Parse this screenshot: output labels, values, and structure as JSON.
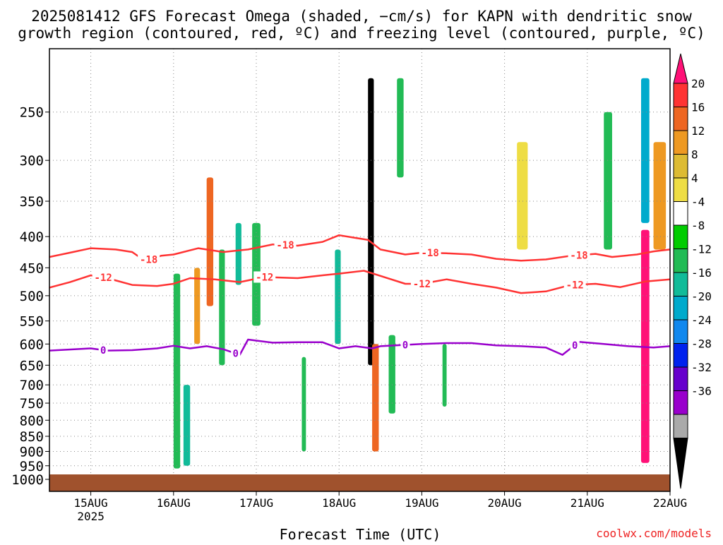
{
  "chart_data": {
    "type": "heatmap",
    "title_line1": "2025081412 GFS Forecast Omega (shaded, −cm/s) for KAPN with dendritic snow",
    "title_line2": "growth region (contoured, red, ºC) and freezing level (contoured, purple, ºC)",
    "xlabel": "Forecast Time (UTC)",
    "credit": "coolwx.com/models",
    "x_ticks": [
      {
        "t": 15,
        "label": "15AUG",
        "sub": "2025"
      },
      {
        "t": 16,
        "label": "16AUG",
        "sub": ""
      },
      {
        "t": 17,
        "label": "17AUG",
        "sub": ""
      },
      {
        "t": 18,
        "label": "18AUG",
        "sub": ""
      },
      {
        "t": 19,
        "label": "19AUG",
        "sub": ""
      },
      {
        "t": 20,
        "label": "20AUG",
        "sub": ""
      },
      {
        "t": 21,
        "label": "21AUG",
        "sub": ""
      },
      {
        "t": 22,
        "label": "22AUG",
        "sub": ""
      }
    ],
    "x_range": [
      14.5,
      22
    ],
    "y_ticks": [
      250,
      300,
      350,
      400,
      450,
      500,
      550,
      600,
      650,
      700,
      750,
      800,
      850,
      900,
      950,
      1000
    ],
    "y_range_hpa": [
      200,
      1000
    ],
    "y_scale": "log-pressure",
    "grid": true,
    "colorbar": {
      "labels": [
        "20",
        "16",
        "12",
        "8",
        "4",
        "-4",
        "-8",
        "-12",
        "-16",
        "-20",
        "-24",
        "-28",
        "-32",
        "-36"
      ],
      "colors": [
        "#ff1177",
        "#ff3333",
        "#ee6622",
        "#ee9922",
        "#ddbb33",
        "#eedd44",
        "#ffffff",
        "#00cc00",
        "#22bb55",
        "#11bb99",
        "#00aacc",
        "#1188ee",
        "#0022ee",
        "#6600cc",
        "#9900cc",
        "#aaaaaa",
        "#000000"
      ]
    },
    "contours": [
      {
        "label": "-18",
        "color": "#ff3333",
        "points": [
          [
            14.5,
            432
          ],
          [
            14.75,
            425
          ],
          [
            15.0,
            418
          ],
          [
            15.3,
            420
          ],
          [
            15.5,
            424
          ],
          [
            15.65,
            438
          ],
          [
            15.85,
            430
          ],
          [
            16.0,
            428
          ],
          [
            16.3,
            418
          ],
          [
            16.6,
            424
          ],
          [
            16.9,
            420
          ],
          [
            17.2,
            412
          ],
          [
            17.5,
            414
          ],
          [
            17.8,
            408
          ],
          [
            18.0,
            398
          ],
          [
            18.2,
            402
          ],
          [
            18.35,
            405
          ],
          [
            18.5,
            420
          ],
          [
            18.8,
            428
          ],
          [
            19.0,
            425
          ],
          [
            19.3,
            426
          ],
          [
            19.6,
            428
          ],
          [
            19.9,
            435
          ],
          [
            20.2,
            438
          ],
          [
            20.5,
            436
          ],
          [
            20.8,
            430
          ],
          [
            21.1,
            427
          ],
          [
            21.3,
            432
          ],
          [
            21.6,
            428
          ],
          [
            21.8,
            423
          ],
          [
            22.0,
            420
          ]
        ],
        "label_at": [
          [
            15.7,
            -18
          ],
          [
            17.35,
            -18
          ],
          [
            19.1,
            -18
          ],
          [
            20.9,
            -18
          ]
        ]
      },
      {
        "label": "-12",
        "color": "#ff3333",
        "points": [
          [
            14.5,
            485
          ],
          [
            14.75,
            475
          ],
          [
            15.0,
            463
          ],
          [
            15.2,
            468
          ],
          [
            15.5,
            480
          ],
          [
            15.8,
            482
          ],
          [
            16.0,
            478
          ],
          [
            16.2,
            468
          ],
          [
            16.5,
            470
          ],
          [
            16.8,
            475
          ],
          [
            17.1,
            466
          ],
          [
            17.5,
            468
          ],
          [
            17.8,
            463
          ],
          [
            18.0,
            460
          ],
          [
            18.3,
            455
          ],
          [
            18.5,
            464
          ],
          [
            18.8,
            478
          ],
          [
            19.0,
            478
          ],
          [
            19.3,
            470
          ],
          [
            19.6,
            478
          ],
          [
            19.9,
            485
          ],
          [
            20.2,
            495
          ],
          [
            20.5,
            492
          ],
          [
            20.8,
            480
          ],
          [
            21.1,
            478
          ],
          [
            21.4,
            484
          ],
          [
            21.7,
            474
          ],
          [
            22.0,
            470
          ]
        ],
        "label_at": [
          [
            15.15,
            -12
          ],
          [
            17.1,
            -12
          ],
          [
            19.0,
            -12
          ],
          [
            20.85,
            -12
          ]
        ]
      },
      {
        "label": "0",
        "color": "#9900cc",
        "points": [
          [
            14.5,
            615
          ],
          [
            14.8,
            612
          ],
          [
            15.0,
            610
          ],
          [
            15.2,
            615
          ],
          [
            15.5,
            614
          ],
          [
            15.8,
            610
          ],
          [
            16.0,
            604
          ],
          [
            16.2,
            610
          ],
          [
            16.4,
            605
          ],
          [
            16.6,
            612
          ],
          [
            16.8,
            625
          ],
          [
            16.9,
            590
          ],
          [
            17.2,
            597
          ],
          [
            17.5,
            596
          ],
          [
            17.8,
            596
          ],
          [
            18.0,
            610
          ],
          [
            18.2,
            605
          ],
          [
            18.4,
            610
          ],
          [
            18.5,
            605
          ],
          [
            18.8,
            602
          ],
          [
            19.0,
            600
          ],
          [
            19.3,
            598
          ],
          [
            19.6,
            598
          ],
          [
            19.9,
            603
          ],
          [
            20.2,
            605
          ],
          [
            20.5,
            608
          ],
          [
            20.7,
            625
          ],
          [
            20.9,
            595
          ],
          [
            21.2,
            600
          ],
          [
            21.5,
            605
          ],
          [
            21.8,
            608
          ],
          [
            22.0,
            605
          ]
        ],
        "label_at": [
          [
            15.15,
            0
          ],
          [
            16.75,
            0
          ],
          [
            18.8,
            0
          ],
          [
            20.85,
            0
          ]
        ]
      }
    ],
    "omega_cells": [
      {
        "t0": 16.0,
        "t1": 16.08,
        "p0": 460,
        "p1": 960,
        "value": -10
      },
      {
        "t0": 16.12,
        "t1": 16.2,
        "p0": 700,
        "p1": 950,
        "value": -12
      },
      {
        "t0": 16.25,
        "t1": 16.32,
        "p0": 450,
        "p1": 600,
        "value": 10
      },
      {
        "t0": 16.4,
        "t1": 16.48,
        "p0": 320,
        "p1": 520,
        "value": 14
      },
      {
        "t0": 16.55,
        "t1": 16.62,
        "p0": 420,
        "p1": 650,
        "value": -8
      },
      {
        "t0": 16.75,
        "t1": 16.82,
        "p0": 380,
        "p1": 480,
        "value": -12
      },
      {
        "t0": 16.95,
        "t1": 17.05,
        "p0": 380,
        "p1": 560,
        "value": -8
      },
      {
        "t0": 17.55,
        "t1": 17.6,
        "p0": 630,
        "p1": 900,
        "value": -8
      },
      {
        "t0": 17.95,
        "t1": 18.02,
        "p0": 420,
        "p1": 600,
        "value": -14
      },
      {
        "t0": 18.35,
        "t1": 18.42,
        "p0": 220,
        "p1": 650,
        "value": -36
      },
      {
        "t0": 18.4,
        "t1": 18.48,
        "p0": 600,
        "p1": 900,
        "value": 12
      },
      {
        "t0": 18.6,
        "t1": 18.68,
        "p0": 580,
        "p1": 780,
        "value": -8
      },
      {
        "t0": 18.7,
        "t1": 18.78,
        "p0": 220,
        "p1": 320,
        "value": -8
      },
      {
        "t0": 19.25,
        "t1": 19.3,
        "p0": 600,
        "p1": 760,
        "value": -8
      },
      {
        "t0": 20.15,
        "t1": 20.28,
        "p0": 280,
        "p1": 420,
        "value": 6
      },
      {
        "t0": 21.2,
        "t1": 21.3,
        "p0": 250,
        "p1": 420,
        "value": -10
      },
      {
        "t0": 21.65,
        "t1": 21.75,
        "p0": 390,
        "p1": 940,
        "value": 20
      },
      {
        "t0": 21.65,
        "t1": 21.75,
        "p0": 220,
        "p1": 380,
        "value": -16
      },
      {
        "t0": 21.8,
        "t1": 21.95,
        "p0": 280,
        "p1": 420,
        "value": 10
      }
    ]
  }
}
